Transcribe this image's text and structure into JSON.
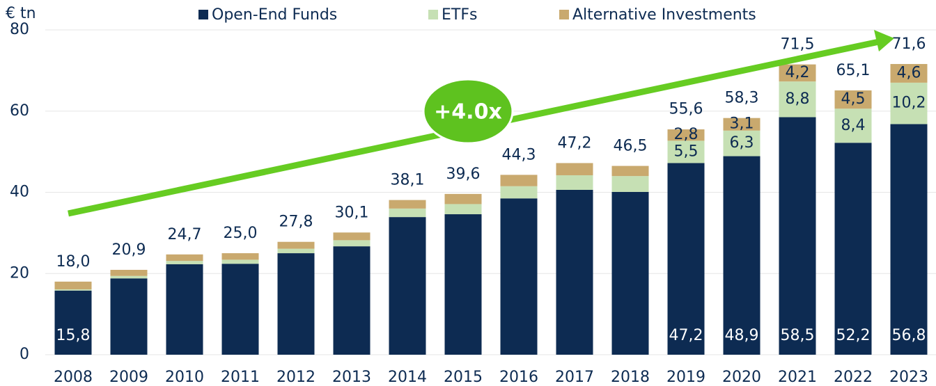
{
  "chart_data": {
    "type": "bar",
    "stacked": true,
    "y_axis_label": "€ tn",
    "annotation": "+4.0x",
    "categories": [
      "2008",
      "2009",
      "2010",
      "2011",
      "2012",
      "2013",
      "2014",
      "2015",
      "2016",
      "2017",
      "2018",
      "2019",
      "2020",
      "2021",
      "2022",
      "2023"
    ],
    "series": [
      {
        "name": "Open-End Funds",
        "color": "#0d2b52",
        "values": [
          15.8,
          18.8,
          22.3,
          22.4,
          25.0,
          26.7,
          33.9,
          34.6,
          38.5,
          40.6,
          40.1,
          47.2,
          48.9,
          58.5,
          52.2,
          56.8
        ],
        "value_labels": [
          "15,8",
          null,
          null,
          null,
          null,
          null,
          null,
          null,
          null,
          null,
          null,
          "47,2",
          "48,9",
          "58,5",
          "52,2",
          "56,8"
        ]
      },
      {
        "name": "ETFs",
        "color": "#c6e0b4",
        "values": [
          0.3,
          0.6,
          0.8,
          1.0,
          1.1,
          1.5,
          2.1,
          2.5,
          3.0,
          3.6,
          3.9,
          5.5,
          6.3,
          8.8,
          8.4,
          10.2
        ],
        "value_labels": [
          null,
          null,
          null,
          null,
          null,
          null,
          null,
          null,
          null,
          null,
          null,
          "5,5",
          "6,3",
          "8,8",
          "8,4",
          "10,2"
        ]
      },
      {
        "name": "Alternative Investments",
        "color": "#c9a96e",
        "values": [
          1.9,
          1.5,
          1.6,
          1.6,
          1.7,
          1.9,
          2.1,
          2.5,
          2.8,
          3.0,
          2.5,
          2.8,
          3.1,
          4.2,
          4.5,
          4.6
        ],
        "value_labels": [
          null,
          null,
          null,
          null,
          null,
          null,
          null,
          null,
          null,
          null,
          null,
          "2,8",
          "3,1",
          "4,2",
          "4,5",
          "4,6"
        ]
      }
    ],
    "totals": [
      18.0,
      20.9,
      24.7,
      25.0,
      27.8,
      30.1,
      38.1,
      39.6,
      44.3,
      47.2,
      46.5,
      55.6,
      58.3,
      71.5,
      65.1,
      71.6
    ],
    "total_labels": [
      "18,0",
      "20,9",
      "24,7",
      "25,0",
      "27,8",
      "30,1",
      "38,1",
      "39,6",
      "44,3",
      "47,2",
      "46,5",
      "55,6",
      "58,3",
      "71,5",
      "65,1",
      "71,6"
    ],
    "ylim": [
      0,
      80
    ],
    "yticks": [
      0,
      20,
      40,
      60,
      80
    ],
    "grid": true,
    "legend": "top"
  }
}
